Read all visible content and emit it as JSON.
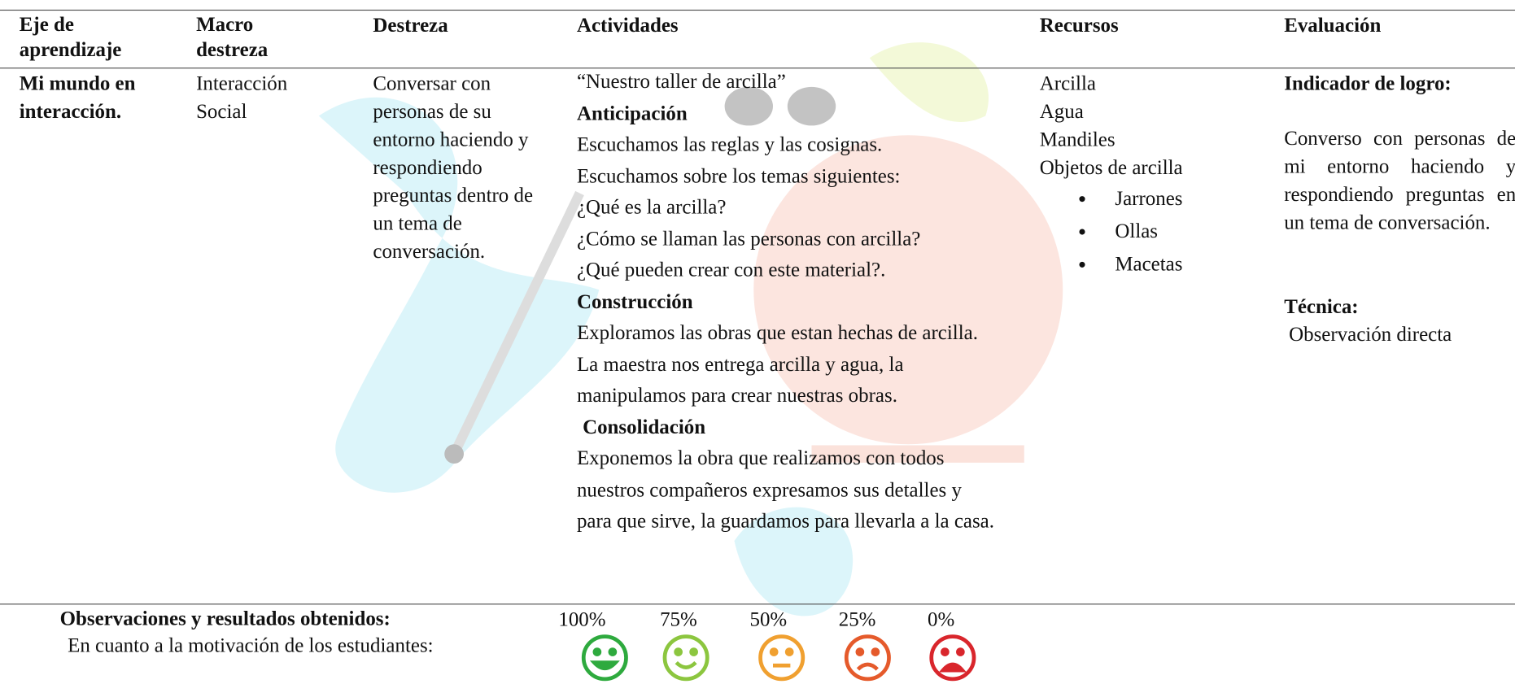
{
  "table": {
    "headers": [
      "Eje de aprendizaje",
      "Macro destreza",
      "Destreza",
      "Actividades",
      "Recursos",
      "Evaluación"
    ],
    "row": {
      "eje": "Mi mundo en interacción.",
      "macro": "Interacción Social",
      "destreza": "Conversar con personas de su entorno haciendo y respondiendo preguntas dentro de un tema de conversación.",
      "actividades": {
        "title": "“Nuestro taller de arcilla”",
        "sections": [
          {
            "heading": "Anticipación",
            "lines": [
              "Escuchamos las reglas y las cosignas.",
              "Escuchamos sobre los temas siguientes:",
              "¿Qué es la arcilla?",
              "¿Cómo se llaman las personas con arcilla?",
              "¿Qué pueden crear con este material?."
            ]
          },
          {
            "heading": "Construcción",
            "lines": [
              "Exploramos las obras que estan hechas de arcilla.",
              "La maestra nos entrega arcilla y agua, la manipulamos para crear nuestras obras."
            ]
          },
          {
            "heading": "Consolidación",
            "lines": [
              "Exponemos la obra que realizamos con todos nuestros compañeros expresamos sus detalles y para que sirve, la guardamos para llevarla a la casa."
            ]
          }
        ]
      },
      "recursos": {
        "items": [
          "Arcilla",
          "Agua",
          "Mandiles",
          "Objetos de arcilla"
        ],
        "bullets": [
          "Jarrones",
          "Ollas",
          "Macetas"
        ]
      },
      "evaluacion": {
        "indicador_title": "Indicador de logro:",
        "indicador": "Converso con personas de mi entorno haciendo y respondiendo preguntas en un tema de conversación.",
        "tecnica_title": "Técnica:",
        "tecnica": "Observación directa"
      }
    }
  },
  "footer": {
    "title": "Observaciones y resultados obtenidos:",
    "subtitle": "En cuanto a la motivación de los estudiantes:",
    "scale": [
      "100%",
      "75%",
      "50%",
      "25%",
      "0%"
    ]
  }
}
